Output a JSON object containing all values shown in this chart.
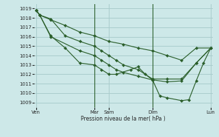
{
  "background_color": "#cde8e8",
  "grid_color": "#a8cccc",
  "line_color": "#2a5e2a",
  "marker_color": "#2a5e2a",
  "xlabel_text": "Pression niveau de la mer( hPa )",
  "ylim": [
    1008.5,
    1019.5
  ],
  "yticks": [
    1009,
    1010,
    1011,
    1012,
    1013,
    1014,
    1015,
    1016,
    1017,
    1018,
    1019
  ],
  "xtick_labels": [
    "Ven",
    "Mar",
    "Sam",
    "Dim",
    "Lun"
  ],
  "xtick_positions": [
    0,
    32,
    40,
    64,
    96
  ],
  "vlines_x": [
    32,
    64
  ],
  "xlim": [
    -1,
    97
  ],
  "series_x": [
    [
      0,
      2,
      8,
      16,
      24,
      32,
      40,
      48,
      56,
      64,
      72,
      80,
      88,
      96
    ],
    [
      0,
      2,
      8,
      16,
      24,
      32,
      36,
      40,
      44,
      48,
      56,
      64,
      72,
      80,
      88,
      96
    ],
    [
      0,
      2,
      8,
      24,
      32,
      36,
      40,
      44,
      48,
      56,
      64,
      72,
      80,
      88,
      96
    ],
    [
      0,
      2,
      8,
      16,
      24,
      32,
      36,
      40,
      44,
      52,
      56,
      60,
      64,
      68,
      72,
      80,
      84,
      88,
      92,
      96
    ]
  ],
  "series_y": [
    [
      1018.8,
      1018.3,
      1017.8,
      1017.2,
      1016.5,
      1016.1,
      1015.5,
      1015.2,
      1014.8,
      1014.5,
      1014.0,
      1013.5,
      1014.8,
      1014.8
    ],
    [
      1018.8,
      1018.3,
      1017.9,
      1016.1,
      1015.5,
      1015.0,
      1014.5,
      1014.0,
      1013.5,
      1013.0,
      1012.5,
      1011.5,
      1011.5,
      1011.5,
      1013.2,
      1014.8
    ],
    [
      1018.8,
      1018.3,
      1016.0,
      1014.5,
      1014.0,
      1013.5,
      1013.0,
      1012.5,
      1012.2,
      1011.8,
      1011.4,
      1011.2,
      1011.3,
      1013.2,
      1014.8
    ],
    [
      1018.8,
      1018.3,
      1016.1,
      1014.8,
      1013.2,
      1013.0,
      1012.5,
      1012.0,
      1012.0,
      1012.5,
      1012.8,
      1012.0,
      1011.4,
      1009.7,
      1009.5,
      1009.2,
      1009.3,
      1011.3,
      1013.2,
      1014.8
    ]
  ]
}
